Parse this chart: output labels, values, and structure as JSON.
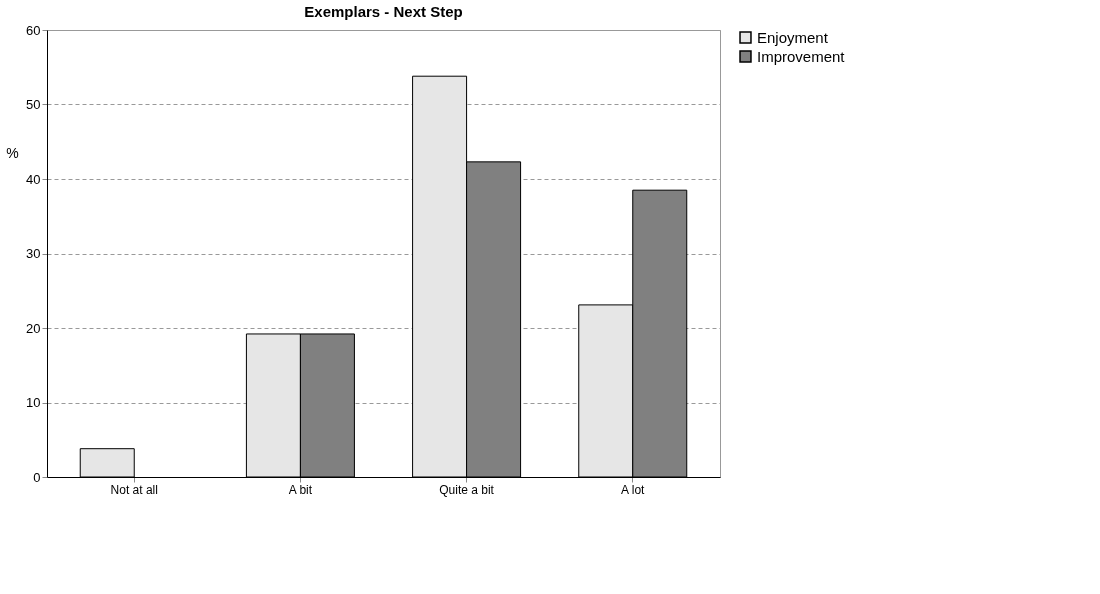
{
  "chart_data": {
    "type": "bar",
    "title": "Exemplars - Next Step",
    "ylabel": "%",
    "categories": [
      "Not at all",
      "A bit",
      "Quite a bit",
      "A lot"
    ],
    "series": [
      {
        "name": "Enjoyment",
        "color": "#e6e6e6",
        "values": [
          3.8,
          19.2,
          53.8,
          23.1
        ]
      },
      {
        "name": "Improvement",
        "color": "#808080",
        "values": [
          null,
          19.2,
          42.3,
          38.5
        ]
      }
    ],
    "ylim": [
      0,
      60
    ],
    "yticks": [
      0,
      10,
      20,
      30,
      40,
      50,
      60
    ],
    "grid": "y",
    "legend": "right"
  }
}
